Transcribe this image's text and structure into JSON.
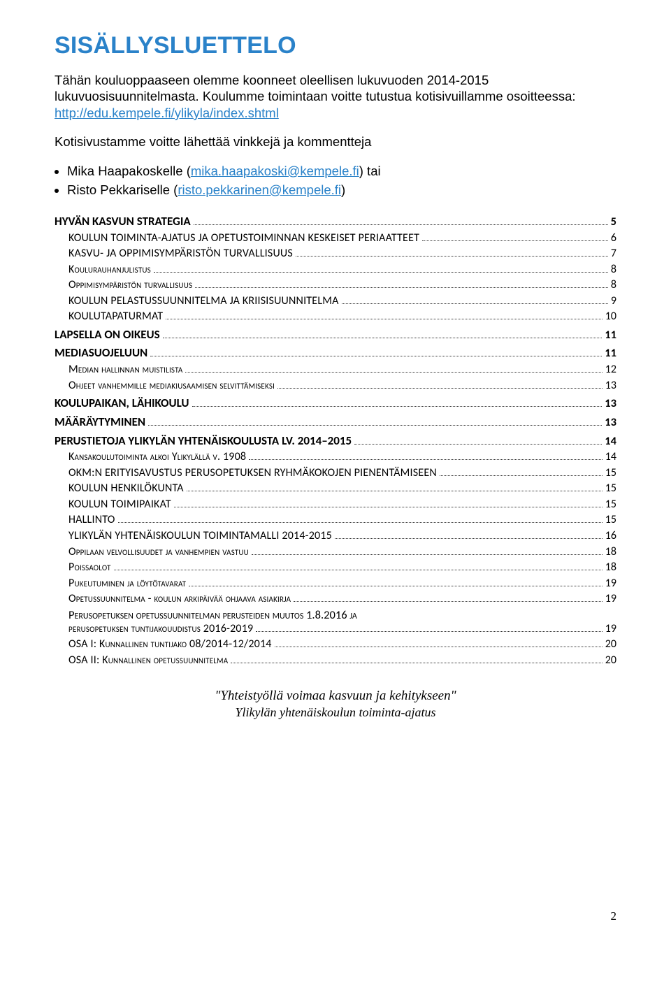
{
  "title": "SISÄLLYSLUETTELO",
  "intro": {
    "line1": "Tähän kouluoppaaseen olemme koonneet oleellisen lukuvuoden 2014-2015 lukuvuosisuunnitelmasta. Koulumme toimintaan voitte tutustua kotisivuillamme osoitteessa: ",
    "link1_text": "http://edu.kempele.fi/ylikyla/index.shtml",
    "line2": "Kotisivustamme voitte lähettää vinkkejä ja kommentteja"
  },
  "contacts": [
    {
      "prefix": "Mika Haapakoskelle (",
      "link": "mika.haapakoski@kempele.fi",
      "suffix": ") tai"
    },
    {
      "prefix": "Risto Pekkariselle (",
      "link": "risto.pekkarinen@kempele.fi",
      "suffix": ")"
    }
  ],
  "toc": [
    {
      "level": 1,
      "label": "HYVÄN KASVUN STRATEGIA",
      "page": "5"
    },
    {
      "level": 2,
      "style": "u",
      "label": "KOULUN TOIMINTA-AJATUS JA OPETUSTOIMINNAN KESKEISET PERIAATTEET",
      "page": "6"
    },
    {
      "level": 2,
      "style": "u",
      "label": "KASVU- JA OPPIMISYMPÄRISTÖN TURVALLISUUS",
      "page": "7"
    },
    {
      "level": 2,
      "style": "sc",
      "label": "Koulurauhanjulistus",
      "page": "8"
    },
    {
      "level": 2,
      "style": "sc",
      "label": "Oppimisympäristön turvallisuus",
      "page": "8"
    },
    {
      "level": 2,
      "style": "u",
      "label": "KOULUN PELASTUSSUUNNITELMA JA KRIISISUUNNITELMA",
      "page": "9"
    },
    {
      "level": 2,
      "style": "u",
      "label": "KOULUTAPATURMAT",
      "page": "10"
    },
    {
      "level": 1,
      "label": "LAPSELLA ON OIKEUS",
      "page": "11"
    },
    {
      "level": 1,
      "label": "MEDIASUOJELUUN",
      "page": "11"
    },
    {
      "level": 2,
      "style": "sc",
      "label": "Median hallinnan muistilista",
      "page": "12"
    },
    {
      "level": 2,
      "style": "sc",
      "label": "Ohjeet vanhemmille mediakiusaamisen selvittämiseksi",
      "page": "13"
    },
    {
      "level": 1,
      "label": "KOULUPAIKAN, LÄHIKOULU",
      "page": "13"
    },
    {
      "level": 1,
      "label": "MÄÄRÄYTYMINEN",
      "page": "13"
    },
    {
      "level": 1,
      "label": "PERUSTIETOJA YLIKYLÄN YHTENÄISKOULUSTA LV. 2014–2015",
      "page": "14"
    },
    {
      "level": 2,
      "style": "sc",
      "label": "Kansakoulutoiminta alkoi Ylikylällä v. 1908",
      "page": "14"
    },
    {
      "level": 2,
      "style": "u",
      "label": "OKM:N ERITYISAVUSTUS PERUSOPETUKSEN RYHMÄKOKOJEN PIENENTÄMISEEN",
      "page": "15"
    },
    {
      "level": 2,
      "style": "u",
      "label": "KOULUN HENKILÖKUNTA",
      "page": "15"
    },
    {
      "level": 2,
      "style": "u",
      "label": "KOULUN TOIMIPAIKAT",
      "page": "15"
    },
    {
      "level": 2,
      "style": "u",
      "label": "HALLINTO",
      "page": "15"
    },
    {
      "level": 2,
      "style": "u",
      "label": "YLIKYLÄN YHTENÄISKOULUN TOIMINTAMALLI 2014-2015",
      "page": "16"
    },
    {
      "level": 2,
      "style": "sc",
      "label": "Oppilaan velvollisuudet ja vanhempien vastuu",
      "page": "18"
    },
    {
      "level": 2,
      "style": "sc",
      "label": "Poissaolot",
      "page": "18"
    },
    {
      "level": 2,
      "style": "sc",
      "label": "Pukeutuminen ja löytötavarat",
      "page": "19"
    },
    {
      "level": 2,
      "style": "sc",
      "label": "Opetussuunnitelma - koulun arkipäivää ohjaava asiakirja",
      "page": "19"
    },
    {
      "level": 2,
      "style": "sc",
      "label": "Perusopetuksen opetussuunnitelman perusteiden muutos 1.8.2016 ja perusopetuksen tuntijakouudistus 2016-2019",
      "page": "19",
      "multiline": true
    },
    {
      "level": 2,
      "style": "sc",
      "label": "OSA I: Kunnallinen tuntijako 08/2014-12/2014",
      "page": "20"
    },
    {
      "level": 2,
      "style": "sc",
      "label": "OSA II: Kunnallinen opetussuunnitelma",
      "page": "20"
    }
  ],
  "page_number": "2",
  "footer": {
    "line1": "\"Yhteistyöllä voimaa kasvuun ja kehitykseen\"",
    "line2": "Ylikylän yhtenäiskoulun toiminta-ajatus"
  },
  "colors": {
    "heading": "#2a82c9",
    "link": "#2a82c9",
    "text": "#000000",
    "bg": "#ffffff"
  }
}
